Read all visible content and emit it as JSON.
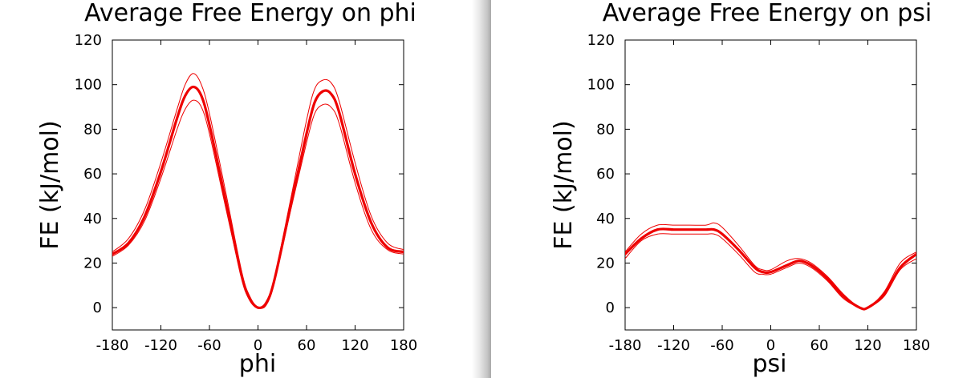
{
  "chart_data": [
    {
      "type": "line",
      "title": "Average Free Energy on phi",
      "xlabel": "phi",
      "ylabel": "FE (kJ/mol)",
      "xlim": [
        -180,
        180
      ],
      "ylim": [
        -10,
        120
      ],
      "xticks": [
        "-180",
        "-120",
        "-60",
        "0",
        "60",
        "120",
        "180"
      ],
      "yticks": [
        "0",
        "20",
        "40",
        "60",
        "80",
        "100",
        "120"
      ],
      "grid": false,
      "color": "#ee0000",
      "x": [
        -180,
        -160,
        -140,
        -120,
        -100,
        -90,
        -80,
        -70,
        -60,
        -40,
        -20,
        -10,
        0,
        10,
        20,
        40,
        60,
        70,
        80,
        90,
        100,
        120,
        140,
        160,
        180
      ],
      "series": [
        {
          "role": "average",
          "values": [
            24,
            29,
            41,
            61,
            85,
            95,
            99,
            95,
            82,
            48,
            14,
            4,
            0,
            2,
            12,
            45,
            78,
            92,
            97,
            96,
            88,
            60,
            38,
            27,
            25
          ]
        },
        {
          "role": "upper",
          "values": [
            25,
            31,
            44,
            65,
            89,
            100,
            105,
            100,
            87,
            52,
            16,
            5,
            0,
            2,
            13,
            48,
            84,
            98,
            102,
            101,
            93,
            65,
            41,
            29,
            26
          ]
        },
        {
          "role": "lower",
          "values": [
            23,
            28,
            39,
            58,
            80,
            89,
            93,
            90,
            78,
            45,
            13,
            3,
            0,
            1,
            11,
            43,
            74,
            87,
            91,
            90,
            83,
            56,
            35,
            26,
            24
          ]
        }
      ]
    },
    {
      "type": "line",
      "title": "Average Free Energy on psi",
      "xlabel": "psi",
      "ylabel": "FE (kJ/mol)",
      "xlim": [
        -180,
        180
      ],
      "ylim": [
        -10,
        120
      ],
      "xticks": [
        "-180",
        "-120",
        "-60",
        "0",
        "60",
        "120",
        "180"
      ],
      "yticks": [
        "0",
        "20",
        "40",
        "60",
        "80",
        "100",
        "120"
      ],
      "grid": false,
      "color": "#ee0000",
      "x": [
        -180,
        -160,
        -140,
        -120,
        -100,
        -80,
        -70,
        -60,
        -40,
        -20,
        -10,
        0,
        20,
        35,
        50,
        70,
        90,
        110,
        120,
        140,
        160,
        180
      ],
      "series": [
        {
          "role": "average",
          "values": [
            24,
            31,
            35,
            35,
            35,
            35,
            35,
            33,
            26,
            18,
            16,
            16,
            19,
            21,
            19,
            13,
            5,
            0,
            0,
            6,
            18,
            24
          ]
        },
        {
          "role": "upper",
          "values": [
            25,
            33,
            37,
            37,
            37,
            37,
            38,
            36,
            28,
            19,
            17,
            17,
            21,
            22,
            20,
            14,
            6,
            0,
            0,
            7,
            20,
            25
          ]
        },
        {
          "role": "lower",
          "values": [
            22,
            30,
            33,
            33,
            33,
            33,
            33,
            31,
            24,
            16,
            15,
            15,
            18,
            20,
            18,
            12,
            4,
            0,
            0,
            5,
            17,
            22
          ]
        }
      ]
    }
  ]
}
